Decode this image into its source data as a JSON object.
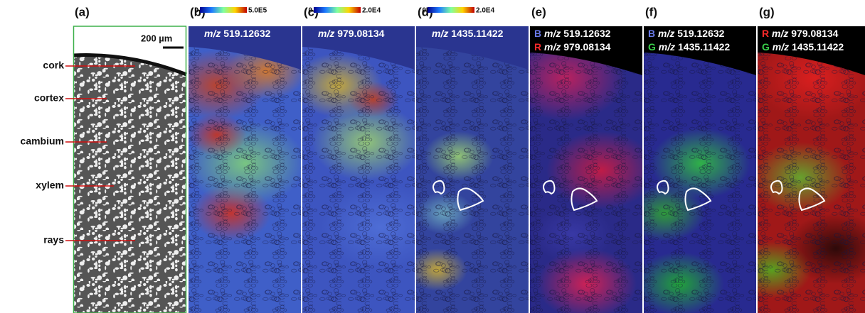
{
  "panels": [
    {
      "label": "(a)",
      "scale_bar": "200 µm",
      "annotations": [
        "cork",
        "cortex",
        "cambium",
        "xylem",
        "rays"
      ]
    },
    {
      "label": "(b)",
      "colorbar": {
        "min": "0",
        "max": "5.0E5"
      },
      "channels": [
        {
          "prefix": "m/z",
          "mass": "519.12632"
        }
      ]
    },
    {
      "label": "(c)",
      "colorbar": {
        "min": "0",
        "max": "2.0E4"
      },
      "channels": [
        {
          "prefix": "m/z",
          "mass": "979.08134"
        }
      ]
    },
    {
      "label": "(d)",
      "colorbar": {
        "min": "0",
        "max": "2.0E4"
      },
      "channels": [
        {
          "prefix": "m/z",
          "mass": "1435.11422"
        }
      ]
    },
    {
      "label": "(e)",
      "channels": [
        {
          "channel": "B",
          "prefix": "m/z",
          "mass": "519.12632"
        },
        {
          "channel": "R",
          "prefix": "m/z",
          "mass": "979.08134"
        }
      ]
    },
    {
      "label": "(f)",
      "channels": [
        {
          "channel": "B",
          "prefix": "m/z",
          "mass": "519.12632"
        },
        {
          "channel": "G",
          "prefix": "m/z",
          "mass": "1435.11422"
        }
      ]
    },
    {
      "label": "(g)",
      "channels": [
        {
          "channel": "R",
          "prefix": "m/z",
          "mass": "979.08134"
        },
        {
          "channel": "G",
          "prefix": "m/z",
          "mass": "1435.11422"
        }
      ]
    }
  ]
}
